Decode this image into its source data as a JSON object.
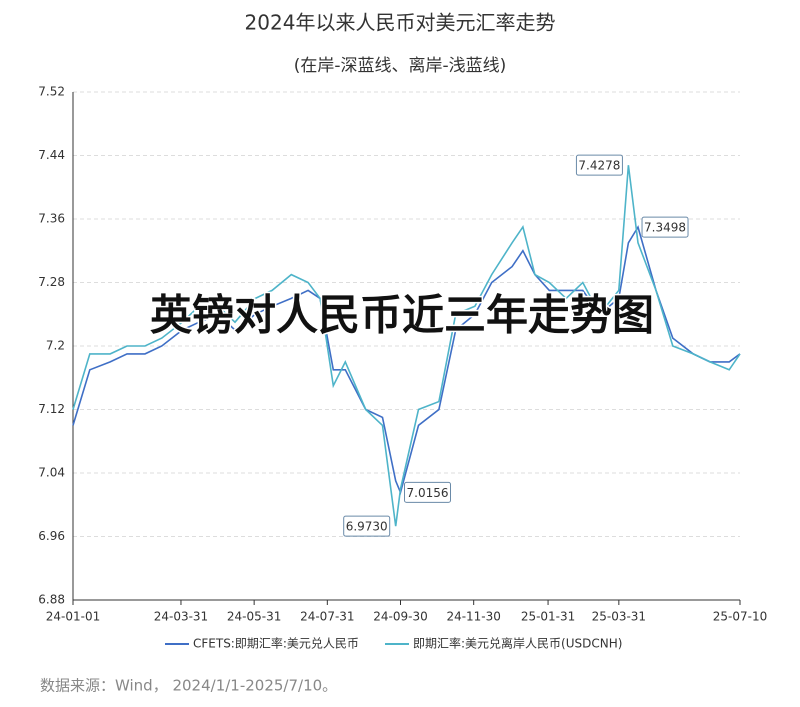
{
  "chart_data": {
    "type": "line",
    "title": "2024年以来人民币对美元汇率走势",
    "subtitle": "(在岸-深蓝线、离岸-浅蓝线)",
    "watermark": "英镑对人民币近三年走势图",
    "source": "数据来源：Wind， 2024/1/1-2025/7/10。",
    "x": [
      "24-01-01",
      "24-01-15",
      "24-02-01",
      "24-02-15",
      "24-03-01",
      "24-03-15",
      "24-04-01",
      "24-04-15",
      "24-05-01",
      "24-05-15",
      "24-06-01",
      "24-06-15",
      "24-07-01",
      "24-07-15",
      "24-07-25",
      "24-08-05",
      "24-08-15",
      "24-09-01",
      "24-09-15",
      "24-09-26",
      "24-09-30",
      "24-10-15",
      "24-11-01",
      "24-11-15",
      "24-12-01",
      "24-12-15",
      "25-01-01",
      "25-01-10",
      "25-01-20",
      "25-02-01",
      "25-02-15",
      "25-03-01",
      "25-03-15",
      "25-03-31",
      "25-04-08",
      "25-04-16",
      "25-05-01",
      "25-05-15",
      "25-06-01",
      "25-06-15",
      "25-07-01",
      "25-07-10"
    ],
    "series": [
      {
        "name": "CFETS:即期汇率:美元兑人民币",
        "color": "#3f6fc6",
        "values": [
          7.1,
          7.17,
          7.18,
          7.19,
          7.19,
          7.2,
          7.22,
          7.23,
          7.24,
          7.22,
          7.24,
          7.25,
          7.26,
          7.27,
          7.26,
          7.17,
          7.17,
          7.12,
          7.11,
          7.03,
          7.0156,
          7.1,
          7.12,
          7.22,
          7.24,
          7.28,
          7.3,
          7.32,
          7.29,
          7.27,
          7.27,
          7.27,
          7.24,
          7.26,
          7.33,
          7.3498,
          7.27,
          7.21,
          7.19,
          7.18,
          7.18,
          7.19
        ]
      },
      {
        "name": "即期汇率:美元兑离岸人民币(USDCNH)",
        "color": "#4eb4c9",
        "values": [
          7.12,
          7.19,
          7.19,
          7.2,
          7.2,
          7.21,
          7.23,
          7.25,
          7.25,
          7.23,
          7.26,
          7.27,
          7.29,
          7.28,
          7.26,
          7.15,
          7.18,
          7.12,
          7.1,
          6.973,
          7.02,
          7.12,
          7.13,
          7.24,
          7.25,
          7.29,
          7.33,
          7.35,
          7.29,
          7.28,
          7.26,
          7.28,
          7.24,
          7.27,
          7.4278,
          7.33,
          7.27,
          7.2,
          7.19,
          7.18,
          7.17,
          7.19
        ]
      }
    ],
    "annotations": [
      {
        "x": "25-04-08",
        "y": 7.4278
      },
      {
        "x": "25-04-16",
        "y": 7.3498
      },
      {
        "x": "24-09-26",
        "y": 6.973
      },
      {
        "x": "24-09-30",
        "y": 7.0156
      }
    ],
    "annotation_labels": [
      "7.4278",
      "7.3498",
      "6.9730",
      "7.0156"
    ],
    "xlim": [
      "24-01-01",
      "25-07-10"
    ],
    "xticks": [
      "24-01-01",
      "24-03-31",
      "24-05-31",
      "24-07-31",
      "24-09-30",
      "24-11-30",
      "25-01-31",
      "25-03-31",
      "25-07-10"
    ],
    "ylim": [
      6.88,
      7.52
    ],
    "yticks": [
      6.88,
      6.96,
      7.04,
      7.12,
      7.2,
      7.28,
      7.36,
      7.44,
      7.52
    ],
    "grid": true
  }
}
